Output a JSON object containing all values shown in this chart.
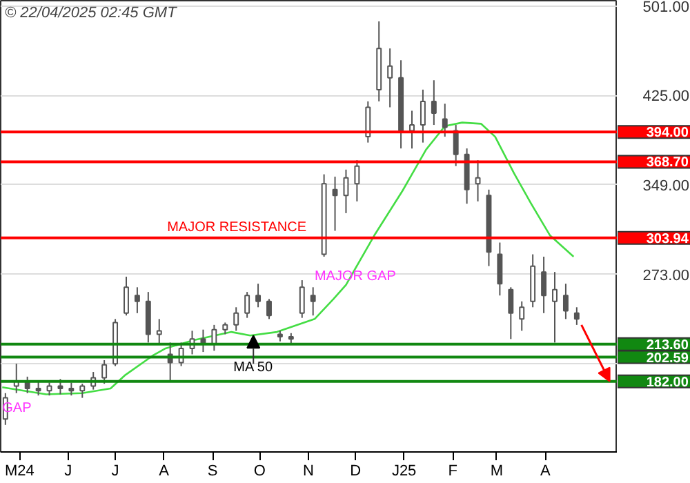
{
  "chart_data": {
    "type": "candlestick",
    "title": "© 22/04/2025 02:45 GMT",
    "x": [
      "2024-04-22",
      "2024-04-29",
      "2024-05-06",
      "2024-05-13",
      "2024-05-20",
      "2024-05-27",
      "2024-06-03",
      "2024-06-10",
      "2024-06-17",
      "2024-06-24",
      "2024-07-01",
      "2024-07-08",
      "2024-07-15",
      "2024-07-22",
      "2024-07-29",
      "2024-08-05",
      "2024-08-12",
      "2024-08-19",
      "2024-08-26",
      "2024-09-02",
      "2024-09-09",
      "2024-09-16",
      "2024-09-23",
      "2024-09-30",
      "2024-10-07",
      "2024-10-14",
      "2024-10-21",
      "2024-10-28",
      "2024-11-04",
      "2024-11-11",
      "2024-11-18",
      "2024-11-25",
      "2024-12-02",
      "2024-12-09",
      "2024-12-16",
      "2024-12-23",
      "2024-12-30",
      "2025-01-06",
      "2025-01-13",
      "2025-01-20",
      "2025-01-27",
      "2025-02-03",
      "2025-02-10",
      "2025-02-17",
      "2025-02-24",
      "2025-03-03",
      "2025-03-10",
      "2025-03-17",
      "2025-03-24",
      "2025-03-31",
      "2025-04-07",
      "2025-04-14",
      "2025-04-21"
    ],
    "ohlc": [
      [
        150,
        172,
        145,
        168
      ],
      [
        178,
        197,
        172,
        182
      ],
      [
        182,
        186,
        172,
        176
      ],
      [
        176,
        182,
        170,
        174
      ],
      [
        174,
        181,
        170,
        178
      ],
      [
        178,
        184,
        171,
        176
      ],
      [
        176,
        181,
        170,
        174
      ],
      [
        174,
        180,
        168,
        178
      ],
      [
        178,
        190,
        175,
        185
      ],
      [
        185,
        200,
        180,
        196
      ],
      [
        197,
        235,
        195,
        232
      ],
      [
        240,
        271,
        238,
        262
      ],
      [
        255,
        262,
        240,
        250
      ],
      [
        250,
        258,
        215,
        222
      ],
      [
        222,
        235,
        214,
        225
      ],
      [
        205,
        215,
        182,
        198
      ],
      [
        198,
        215,
        195,
        210
      ],
      [
        210,
        225,
        205,
        218
      ],
      [
        218,
        226,
        207,
        214
      ],
      [
        214,
        230,
        208,
        226
      ],
      [
        226,
        232,
        222,
        230
      ],
      [
        230,
        245,
        225,
        240
      ],
      [
        240,
        258,
        236,
        255
      ],
      [
        255,
        265,
        245,
        250
      ],
      [
        250,
        252,
        235,
        238
      ],
      [
        222,
        225,
        216,
        220
      ],
      [
        220,
        223,
        213,
        218
      ],
      [
        240,
        268,
        236,
        262
      ],
      [
        255,
        262,
        238,
        250
      ],
      [
        290,
        358,
        288,
        350
      ],
      [
        345,
        356,
        310,
        340
      ],
      [
        340,
        362,
        325,
        355
      ],
      [
        350,
        370,
        335,
        365
      ],
      [
        390,
        420,
        385,
        415
      ],
      [
        430,
        488,
        420,
        465
      ],
      [
        440,
        465,
        415,
        450
      ],
      [
        440,
        455,
        380,
        395
      ],
      [
        395,
        412,
        380,
        400
      ],
      [
        400,
        430,
        385,
        420
      ],
      [
        420,
        438,
        400,
        410
      ],
      [
        405,
        418,
        390,
        398
      ],
      [
        395,
        400,
        365,
        375
      ],
      [
        375,
        380,
        333,
        345
      ],
      [
        350,
        370,
        335,
        355
      ],
      [
        340,
        345,
        280,
        292
      ],
      [
        290,
        300,
        255,
        265
      ],
      [
        260,
        262,
        218,
        240
      ],
      [
        235,
        250,
        225,
        245
      ],
      [
        250,
        290,
        245,
        280
      ],
      [
        275,
        288,
        240,
        255
      ],
      [
        250,
        275,
        215,
        260
      ],
      [
        255,
        265,
        235,
        242
      ],
      [
        240,
        245,
        230,
        235
      ]
    ],
    "color": "#555555",
    "series": [
      {
        "type": "line",
        "color": "#44dd44",
        "x": [
          "2024-04-20",
          "2024-05-18",
          "2024-06-10",
          "2024-06-28",
          "2024-07-07",
          "2024-07-25",
          "2024-08-02",
          "2024-08-20",
          "2024-09-13",
          "2024-09-25",
          "2024-10-12",
          "2024-11-05",
          "2024-11-17",
          "2024-11-25",
          "2024-12-13",
          "2024-12-31",
          "2025-01-15",
          "2025-01-27",
          "2025-02-07",
          "2025-02-19",
          "2025-02-28",
          "2025-03-12",
          "2025-03-23",
          "2025-04-04",
          "2025-04-19"
        ],
        "values": [
          177,
          171,
          172,
          176,
          187,
          204,
          210,
          217,
          224,
          221,
          224,
          235,
          252,
          264,
          306,
          344,
          379,
          399,
          402,
          401,
          390,
          359,
          333,
          306,
          288
        ]
      }
    ],
    "xlim": [
      "2024-04-19",
      "2025-05-17"
    ],
    "xticks": [
      {
        "value": "2024-05-01",
        "label": "M24"
      },
      {
        "value": "2024-06-01",
        "label": "J"
      },
      {
        "value": "2024-07-01",
        "label": "J"
      },
      {
        "value": "2024-08-01",
        "label": "A"
      },
      {
        "value": "2024-09-01",
        "label": "S"
      },
      {
        "value": "2024-10-01",
        "label": "O"
      },
      {
        "value": "2024-11-01",
        "label": "N"
      },
      {
        "value": "2024-12-01",
        "label": "D"
      },
      {
        "value": "2025-01-01",
        "label": "J25"
      },
      {
        "value": "2025-02-01",
        "label": "F"
      },
      {
        "value": "2025-03-01",
        "label": "M"
      },
      {
        "value": "2025-04-01",
        "label": "A"
      }
    ],
    "ylim": [
      122,
      505.6
    ],
    "yticks": [
      {
        "value": 197,
        "label": null
      },
      {
        "value": 273,
        "label": "273.00"
      },
      {
        "value": 349,
        "label": "349.00"
      },
      {
        "value": 425,
        "label": "425.00"
      },
      {
        "value": 501,
        "label": "501.00"
      }
    ],
    "grid": "y",
    "ref_lines": [
      {
        "axis": "y",
        "value": 394,
        "label": "394.00",
        "color": "#ff0000"
      },
      {
        "axis": "y",
        "value": 368.7,
        "label": "368.70",
        "color": "#ff0000"
      },
      {
        "axis": "y",
        "value": 303.94,
        "label": "303.94",
        "color": "#ff0000"
      },
      {
        "axis": "y",
        "value": 213.6,
        "label": "213.60",
        "color": "#118811"
      },
      {
        "axis": "y",
        "value": 202.59,
        "label": "202.59",
        "color": "#118811"
      },
      {
        "axis": "y",
        "value": 182,
        "label": "182.00",
        "color": "#118811"
      }
    ],
    "annotations": [
      {
        "text": "GAP",
        "x": "2024-04-20",
        "y": 150
      },
      {
        "text": "MAJOR RESISTANCE",
        "x": "2024-08-03",
        "y": 303.94
      },
      {
        "text": "MAJOR GAP",
        "x": "2024-11-05",
        "y": 262
      },
      {
        "text": "MA 50",
        "x": "2024-09-27",
        "y": 187
      }
    ]
  }
}
